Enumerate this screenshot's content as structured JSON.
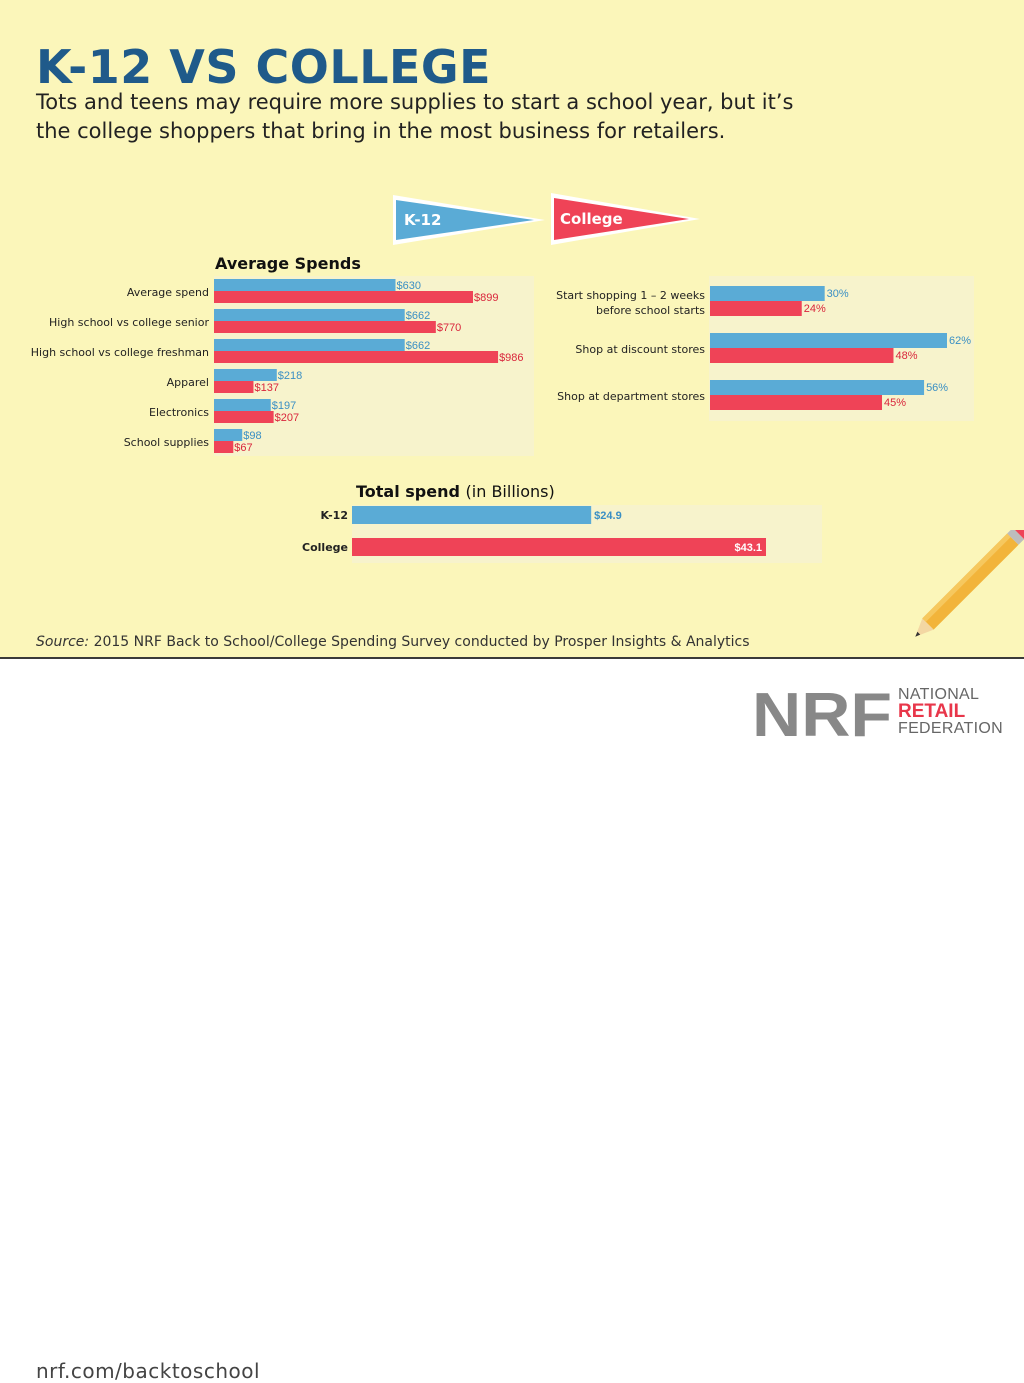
{
  "header": {
    "title": "K-12 VS COLLEGE",
    "subtitle": "Tots and teens may require more supplies to start a school year, but it’s the college shoppers that bring in the most business for retailers."
  },
  "legend": {
    "k12": "K-12",
    "college": "College"
  },
  "colors": {
    "k12": "#5aabd6",
    "college": "#ef4357",
    "background": "#fbf6ba",
    "title": "#1f5a8a"
  },
  "chart_data": [
    {
      "type": "bar",
      "title": "Average Spends",
      "categories": [
        "Average spend",
        "High school vs college senior",
        "High school vs college freshman",
        "Apparel",
        "Electronics",
        "School supplies"
      ],
      "series": [
        {
          "name": "K-12",
          "values": [
            630,
            662,
            662,
            218,
            197,
            98
          ],
          "labels": [
            "$630",
            "$662",
            "$662",
            "$218",
            "$197",
            "$98"
          ]
        },
        {
          "name": "College",
          "values": [
            899,
            770,
            986,
            137,
            207,
            67
          ],
          "labels": [
            "$899",
            "$770",
            "$986",
            "$137",
            "$207",
            "$67"
          ]
        }
      ]
    },
    {
      "type": "bar",
      "title": "",
      "categories": [
        "Start shopping 1 – 2 weeks before school starts",
        "Shop at discount stores",
        "Shop at department stores"
      ],
      "series": [
        {
          "name": "K-12",
          "values": [
            30,
            62,
            56
          ],
          "labels": [
            "30%",
            "62%",
            "56%"
          ]
        },
        {
          "name": "College",
          "values": [
            24,
            48,
            45
          ],
          "labels": [
            "24%",
            "48%",
            "45%"
          ]
        }
      ]
    },
    {
      "type": "bar",
      "title": "Total spend",
      "title_suffix": "(in Billions)",
      "categories": [
        "K-12",
        "College"
      ],
      "values": [
        24.9,
        43.1
      ],
      "labels": [
        "$24.9",
        "$43.1"
      ]
    }
  ],
  "footer": {
    "source_prefix": "Source:",
    "source_text": "2015 NRF Back to School/College Spending Survey conducted by Prosper Insights & Analytics",
    "url": "nrf.com/backtoschool",
    "logo_letters": "NRF",
    "logo_national": "NATIONAL",
    "logo_retail": "RETAIL",
    "logo_federation": "FEDERATION"
  }
}
